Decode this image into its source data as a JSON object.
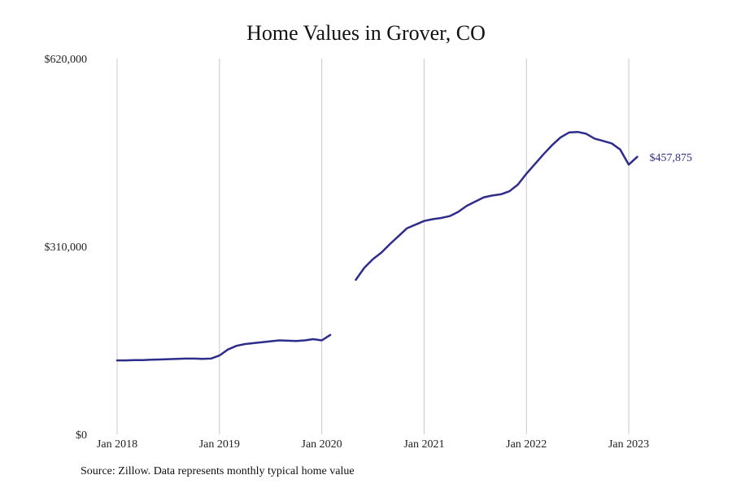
{
  "page": {
    "source_note": "Source: Zillow. Data represents monthly typical home value"
  },
  "chart_data": {
    "type": "line",
    "title": "Home Values in Grover, CO",
    "xlabel": "",
    "ylabel": "",
    "ylim": [
      0,
      620000
    ],
    "xlim": [
      "2018-01",
      "2023-03"
    ],
    "grid": {
      "vertical": true,
      "horizontal": false
    },
    "y_ticks": [
      {
        "value": 0,
        "label": "$0"
      },
      {
        "value": 310000,
        "label": "$310,000"
      },
      {
        "value": 620000,
        "label": "$620,000"
      }
    ],
    "x_ticks": [
      {
        "value": "2018-01",
        "label": "Jan 2018"
      },
      {
        "value": "2019-01",
        "label": "Jan 2019"
      },
      {
        "value": "2020-01",
        "label": "Jan 2020"
      },
      {
        "value": "2021-01",
        "label": "Jan 2021"
      },
      {
        "value": "2022-01",
        "label": "Jan 2022"
      },
      {
        "value": "2023-01",
        "label": "Jan 2023"
      }
    ],
    "series": [
      {
        "color": "#2e2d8c",
        "end_label": "$457,875",
        "points": [
          {
            "x": "2018-01",
            "y": 122000
          },
          {
            "x": "2018-02",
            "y": 122000
          },
          {
            "x": "2018-03",
            "y": 122500
          },
          {
            "x": "2018-04",
            "y": 122500
          },
          {
            "x": "2018-05",
            "y": 123000
          },
          {
            "x": "2018-06",
            "y": 123500
          },
          {
            "x": "2018-07",
            "y": 124000
          },
          {
            "x": "2018-08",
            "y": 124500
          },
          {
            "x": "2018-09",
            "y": 125000
          },
          {
            "x": "2018-10",
            "y": 125000
          },
          {
            "x": "2018-11",
            "y": 124500
          },
          {
            "x": "2018-12",
            "y": 125000
          },
          {
            "x": "2019-01",
            "y": 130000
          },
          {
            "x": "2019-02",
            "y": 140000
          },
          {
            "x": "2019-03",
            "y": 146000
          },
          {
            "x": "2019-04",
            "y": 149000
          },
          {
            "x": "2019-05",
            "y": 150500
          },
          {
            "x": "2019-06",
            "y": 152000
          },
          {
            "x": "2019-07",
            "y": 153500
          },
          {
            "x": "2019-08",
            "y": 155000
          },
          {
            "x": "2019-09",
            "y": 154500
          },
          {
            "x": "2019-10",
            "y": 154000
          },
          {
            "x": "2019-11",
            "y": 155000
          },
          {
            "x": "2019-12",
            "y": 157000
          },
          {
            "x": "2020-01",
            "y": 155000
          },
          {
            "x": "2020-02",
            "y": 164000
          },
          {
            "x": "2020-03",
            "y": null
          },
          {
            "x": "2020-04",
            "y": null
          },
          {
            "x": "2020-05",
            "y": 255000
          },
          {
            "x": "2020-06",
            "y": 275000
          },
          {
            "x": "2020-07",
            "y": 289000
          },
          {
            "x": "2020-08",
            "y": 300000
          },
          {
            "x": "2020-09",
            "y": 314000
          },
          {
            "x": "2020-10",
            "y": 327000
          },
          {
            "x": "2020-11",
            "y": 340000
          },
          {
            "x": "2020-12",
            "y": 346000
          },
          {
            "x": "2021-01",
            "y": 352000
          },
          {
            "x": "2021-02",
            "y": 355000
          },
          {
            "x": "2021-03",
            "y": 357000
          },
          {
            "x": "2021-04",
            "y": 360000
          },
          {
            "x": "2021-05",
            "y": 367000
          },
          {
            "x": "2021-06",
            "y": 377000
          },
          {
            "x": "2021-07",
            "y": 384000
          },
          {
            "x": "2021-08",
            "y": 391000
          },
          {
            "x": "2021-09",
            "y": 394000
          },
          {
            "x": "2021-10",
            "y": 396000
          },
          {
            "x": "2021-11",
            "y": 401000
          },
          {
            "x": "2021-12",
            "y": 412000
          },
          {
            "x": "2022-01",
            "y": 430000
          },
          {
            "x": "2022-02",
            "y": 446000
          },
          {
            "x": "2022-03",
            "y": 462000
          },
          {
            "x": "2022-04",
            "y": 477000
          },
          {
            "x": "2022-05",
            "y": 490000
          },
          {
            "x": "2022-06",
            "y": 498000
          },
          {
            "x": "2022-07",
            "y": 499000
          },
          {
            "x": "2022-08",
            "y": 496000
          },
          {
            "x": "2022-09",
            "y": 488000
          },
          {
            "x": "2022-10",
            "y": 484000
          },
          {
            "x": "2022-11",
            "y": 480000
          },
          {
            "x": "2022-12",
            "y": 470000
          },
          {
            "x": "2023-01",
            "y": 445000
          },
          {
            "x": "2023-02",
            "y": 457875
          }
        ]
      }
    ]
  }
}
